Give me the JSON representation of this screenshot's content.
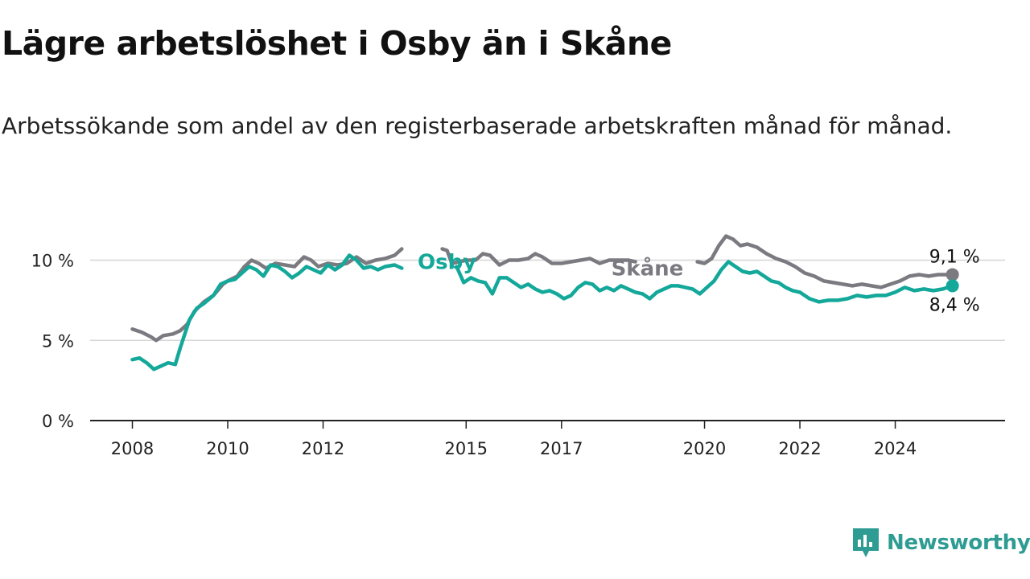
{
  "title": "Lägre arbetslöshet i Osby än i Skåne",
  "subtitle": "Arbetssökande som andel av den registerbaserade arbetskraften månad för månad.",
  "brand": {
    "name": "Newsworthy",
    "icon": "newsworthy-logo-icon"
  },
  "colors": {
    "osby": "#13a89a",
    "skane": "#7a7a80",
    "grid": "#d6d6d6",
    "axis": "#222222",
    "brand": "#2e9c93"
  },
  "chart_data": {
    "type": "line",
    "title": "Lägre arbetslöshet i Osby än i Skåne",
    "xlabel": "",
    "ylabel": "",
    "xlim": [
      2008,
      2025.4
    ],
    "ylim": [
      0,
      10
    ],
    "grid": true,
    "x_ticks": [
      {
        "value": 2008,
        "label": "2008"
      },
      {
        "value": 2010,
        "label": "2010"
      },
      {
        "value": 2012,
        "label": "2012"
      },
      {
        "value": 2015,
        "label": "2015"
      },
      {
        "value": 2017,
        "label": "2017"
      },
      {
        "value": 2020,
        "label": "2020"
      },
      {
        "value": 2022,
        "label": "2022"
      },
      {
        "value": 2024,
        "label": "2024"
      }
    ],
    "y_ticks": [
      {
        "value": 0,
        "label": "0 %"
      },
      {
        "value": 5,
        "label": "5 %"
      },
      {
        "value": 10,
        "label": "10 %"
      }
    ],
    "series": [
      {
        "name": "Skåne",
        "label": "Skåne",
        "end_label": "9,1 %",
        "label_at": [
          2018.8,
          9.5
        ],
        "points": [
          [
            2008.0,
            5.7
          ],
          [
            2008.2,
            5.5
          ],
          [
            2008.4,
            5.2
          ],
          [
            2008.5,
            5.0
          ],
          [
            2008.65,
            5.3
          ],
          [
            2008.85,
            5.4
          ],
          [
            2009.0,
            5.6
          ],
          [
            2009.15,
            6.0
          ],
          [
            2009.3,
            6.8
          ],
          [
            2009.5,
            7.4
          ],
          [
            2009.7,
            7.8
          ],
          [
            2009.9,
            8.5
          ],
          [
            2010.0,
            8.7
          ],
          [
            2010.2,
            9.0
          ],
          [
            2010.35,
            9.6
          ],
          [
            2010.5,
            10.0
          ],
          [
            2010.65,
            9.8
          ],
          [
            2010.8,
            9.5
          ],
          [
            2011.0,
            9.8
          ],
          [
            2011.2,
            9.7
          ],
          [
            2011.4,
            9.6
          ],
          [
            2011.6,
            10.2
          ],
          [
            2011.75,
            10.0
          ],
          [
            2011.9,
            9.6
          ],
          [
            2012.1,
            9.8
          ],
          [
            2012.3,
            9.7
          ],
          [
            2012.5,
            9.8
          ],
          [
            2012.7,
            10.2
          ],
          [
            2012.9,
            9.8
          ],
          [
            2013.1,
            10.0
          ],
          [
            2013.3,
            10.1
          ],
          [
            2013.5,
            10.3
          ],
          [
            2013.65,
            10.7
          ],
          null,
          [
            2014.5,
            10.7
          ],
          [
            2014.6,
            10.6
          ],
          [
            2014.7,
            9.8
          ],
          [
            2014.85,
            9.9
          ],
          [
            2015.0,
            10.0
          ],
          [
            2015.2,
            10.0
          ],
          [
            2015.35,
            10.4
          ],
          [
            2015.5,
            10.3
          ],
          [
            2015.7,
            9.7
          ],
          [
            2015.9,
            10.0
          ],
          [
            2016.1,
            10.0
          ],
          [
            2016.3,
            10.1
          ],
          [
            2016.45,
            10.4
          ],
          [
            2016.6,
            10.2
          ],
          [
            2016.8,
            9.8
          ],
          [
            2017.0,
            9.8
          ],
          [
            2017.2,
            9.9
          ],
          [
            2017.4,
            10.0
          ],
          [
            2017.6,
            10.1
          ],
          [
            2017.8,
            9.8
          ],
          [
            2018.0,
            10.0
          ],
          [
            2018.2,
            10.0
          ],
          [
            2018.4,
            10.0
          ],
          [
            2018.55,
            9.9
          ],
          null,
          [
            2019.85,
            9.9
          ],
          [
            2020.0,
            9.8
          ],
          [
            2020.15,
            10.1
          ],
          [
            2020.3,
            10.9
          ],
          [
            2020.45,
            11.5
          ],
          [
            2020.6,
            11.3
          ],
          [
            2020.75,
            10.9
          ],
          [
            2020.9,
            11.0
          ],
          [
            2021.1,
            10.8
          ],
          [
            2021.3,
            10.4
          ],
          [
            2021.5,
            10.1
          ],
          [
            2021.7,
            9.9
          ],
          [
            2021.9,
            9.6
          ],
          [
            2022.1,
            9.2
          ],
          [
            2022.3,
            9.0
          ],
          [
            2022.5,
            8.7
          ],
          [
            2022.7,
            8.6
          ],
          [
            2022.9,
            8.5
          ],
          [
            2023.1,
            8.4
          ],
          [
            2023.3,
            8.5
          ],
          [
            2023.5,
            8.4
          ],
          [
            2023.7,
            8.3
          ],
          [
            2023.9,
            8.5
          ],
          [
            2024.1,
            8.7
          ],
          [
            2024.3,
            9.0
          ],
          [
            2024.5,
            9.1
          ],
          [
            2024.7,
            9.0
          ],
          [
            2024.9,
            9.1
          ],
          [
            2025.2,
            9.1
          ]
        ]
      },
      {
        "name": "Osby",
        "label": "Osby",
        "end_label": "8,4 %",
        "label_at": [
          2014.6,
          9.9
        ],
        "points": [
          [
            2008.0,
            3.8
          ],
          [
            2008.15,
            3.9
          ],
          [
            2008.3,
            3.6
          ],
          [
            2008.45,
            3.2
          ],
          [
            2008.6,
            3.4
          ],
          [
            2008.75,
            3.6
          ],
          [
            2008.9,
            3.5
          ],
          [
            2009.0,
            4.5
          ],
          [
            2009.2,
            6.3
          ],
          [
            2009.35,
            7.0
          ],
          [
            2009.5,
            7.3
          ],
          [
            2009.7,
            7.8
          ],
          [
            2009.85,
            8.5
          ],
          [
            2010.0,
            8.7
          ],
          [
            2010.15,
            8.8
          ],
          [
            2010.3,
            9.2
          ],
          [
            2010.45,
            9.6
          ],
          [
            2010.6,
            9.4
          ],
          [
            2010.75,
            9.0
          ],
          [
            2010.9,
            9.7
          ],
          [
            2011.05,
            9.6
          ],
          [
            2011.2,
            9.3
          ],
          [
            2011.35,
            8.9
          ],
          [
            2011.5,
            9.2
          ],
          [
            2011.65,
            9.6
          ],
          [
            2011.8,
            9.4
          ],
          [
            2011.95,
            9.2
          ],
          [
            2012.1,
            9.7
          ],
          [
            2012.25,
            9.4
          ],
          [
            2012.4,
            9.7
          ],
          [
            2012.55,
            10.3
          ],
          [
            2012.7,
            10.0
          ],
          [
            2012.85,
            9.5
          ],
          [
            2013.0,
            9.6
          ],
          [
            2013.15,
            9.4
          ],
          [
            2013.3,
            9.6
          ],
          [
            2013.5,
            9.7
          ],
          [
            2013.65,
            9.5
          ],
          null,
          [
            2014.8,
            9.6
          ],
          [
            2014.95,
            8.6
          ],
          [
            2015.1,
            8.9
          ],
          [
            2015.25,
            8.7
          ],
          [
            2015.4,
            8.6
          ],
          [
            2015.55,
            7.9
          ],
          [
            2015.7,
            8.9
          ],
          [
            2015.85,
            8.9
          ],
          [
            2016.0,
            8.6
          ],
          [
            2016.15,
            8.3
          ],
          [
            2016.3,
            8.5
          ],
          [
            2016.45,
            8.2
          ],
          [
            2016.6,
            8.0
          ],
          [
            2016.75,
            8.1
          ],
          [
            2016.9,
            7.9
          ],
          [
            2017.05,
            7.6
          ],
          [
            2017.2,
            7.8
          ],
          [
            2017.35,
            8.3
          ],
          [
            2017.5,
            8.6
          ],
          [
            2017.65,
            8.5
          ],
          [
            2017.8,
            8.1
          ],
          [
            2017.95,
            8.3
          ],
          [
            2018.1,
            8.1
          ],
          [
            2018.25,
            8.4
          ],
          [
            2018.4,
            8.2
          ],
          [
            2018.55,
            8.0
          ],
          [
            2018.7,
            7.9
          ],
          [
            2018.85,
            7.6
          ],
          [
            2019.0,
            8.0
          ],
          [
            2019.15,
            8.2
          ],
          [
            2019.3,
            8.4
          ],
          [
            2019.45,
            8.4
          ],
          [
            2019.6,
            8.3
          ],
          [
            2019.75,
            8.2
          ],
          [
            2019.9,
            7.9
          ],
          [
            2020.05,
            8.3
          ],
          [
            2020.2,
            8.7
          ],
          [
            2020.35,
            9.4
          ],
          [
            2020.5,
            9.9
          ],
          [
            2020.65,
            9.6
          ],
          [
            2020.8,
            9.3
          ],
          [
            2020.95,
            9.2
          ],
          [
            2021.1,
            9.3
          ],
          [
            2021.25,
            9.0
          ],
          [
            2021.4,
            8.7
          ],
          [
            2021.55,
            8.6
          ],
          [
            2021.7,
            8.3
          ],
          [
            2021.85,
            8.1
          ],
          [
            2022.0,
            8.0
          ],
          [
            2022.2,
            7.6
          ],
          [
            2022.4,
            7.4
          ],
          [
            2022.6,
            7.5
          ],
          [
            2022.8,
            7.5
          ],
          [
            2023.0,
            7.6
          ],
          [
            2023.2,
            7.8
          ],
          [
            2023.4,
            7.7
          ],
          [
            2023.6,
            7.8
          ],
          [
            2023.8,
            7.8
          ],
          [
            2024.0,
            8.0
          ],
          [
            2024.2,
            8.3
          ],
          [
            2024.4,
            8.1
          ],
          [
            2024.6,
            8.2
          ],
          [
            2024.8,
            8.1
          ],
          [
            2025.0,
            8.2
          ],
          [
            2025.2,
            8.4
          ]
        ]
      }
    ]
  }
}
